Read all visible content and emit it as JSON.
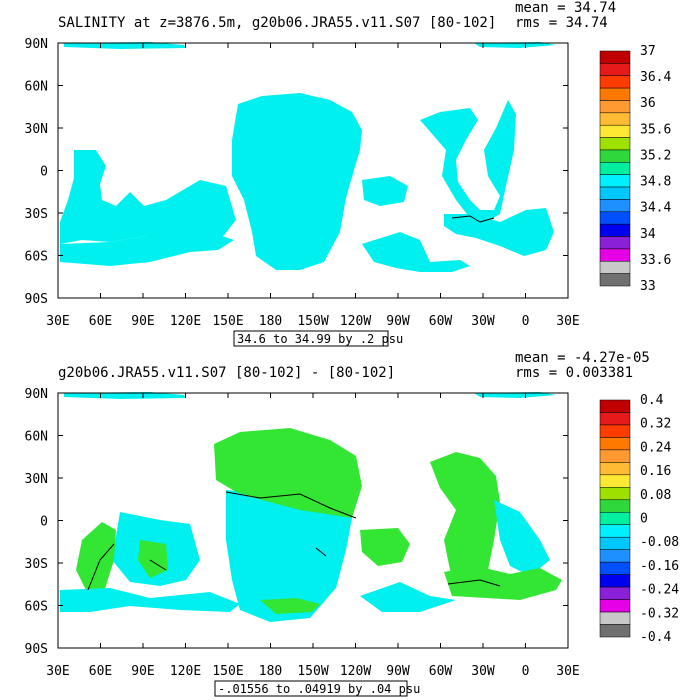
{
  "chart_data": [
    {
      "type": "heatmap",
      "title": "SALINITY at z=3876.5m, g20b06.JRA55.v11.S07 [80-102]",
      "stats": {
        "mean": "mean = 34.74",
        "rms": "rms = 34.74"
      },
      "x_ticks": [
        "30E",
        "60E",
        "90E",
        "120E",
        "150E",
        "180",
        "150W",
        "120W",
        "90W",
        "60W",
        "30W",
        "0",
        "30E"
      ],
      "y_ticks": [
        "90N",
        "60N",
        "30N",
        "0",
        "30S",
        "60S",
        "90S"
      ],
      "contour_note": "34.6 to 34.99 by .2 psu",
      "colorbar": {
        "labels": [
          "37",
          "36.4",
          "36",
          "35.6",
          "35.2",
          "34.8",
          "34.4",
          "34",
          "33.6",
          "33"
        ],
        "colors": [
          "#c00000",
          "#e61a1a",
          "#ff3c00",
          "#ff7800",
          "#ff9a33",
          "#ffbb33",
          "#ffe833",
          "#9ee000",
          "#2fd73a",
          "#00f0a0",
          "#00f0ff",
          "#00c8ff",
          "#1e90ff",
          "#0050ff",
          "#0000ee",
          "#8a20d8",
          "#e600e6",
          "#c8c8c8",
          "#707070"
        ]
      },
      "fill_color": "#00f0f0"
    },
    {
      "type": "heatmap",
      "title": "g20b06.JRA55.v11.S07 [80-102] - [80-102]",
      "stats": {
        "mean": "mean = -4.27e-05",
        "rms": "rms = 0.003381"
      },
      "x_ticks": [
        "30E",
        "60E",
        "90E",
        "120E",
        "150E",
        "180",
        "150W",
        "120W",
        "90W",
        "60W",
        "30W",
        "0",
        "30E"
      ],
      "y_ticks": [
        "90N",
        "60N",
        "30N",
        "0",
        "30S",
        "60S",
        "90S"
      ],
      "contour_note": "-.01556 to .04919 by .04 psu",
      "colorbar": {
        "labels": [
          "0.4",
          "0.32",
          "0.24",
          "0.16",
          "0.08",
          "0",
          "-0.08",
          "-0.16",
          "-0.24",
          "-0.32",
          "-0.4"
        ],
        "colors": [
          "#c00000",
          "#e61a1a",
          "#ff3c00",
          "#ff7800",
          "#ff9a33",
          "#ffbb33",
          "#ffe833",
          "#9ee000",
          "#2fd73a",
          "#00f0a0",
          "#00f0ff",
          "#00c8ff",
          "#1e90ff",
          "#0050ff",
          "#0000ee",
          "#8a20d8",
          "#e600e6",
          "#c8c8c8",
          "#707070"
        ]
      },
      "fill_color": "#00f0f0",
      "positive_color": "#33e633"
    }
  ]
}
